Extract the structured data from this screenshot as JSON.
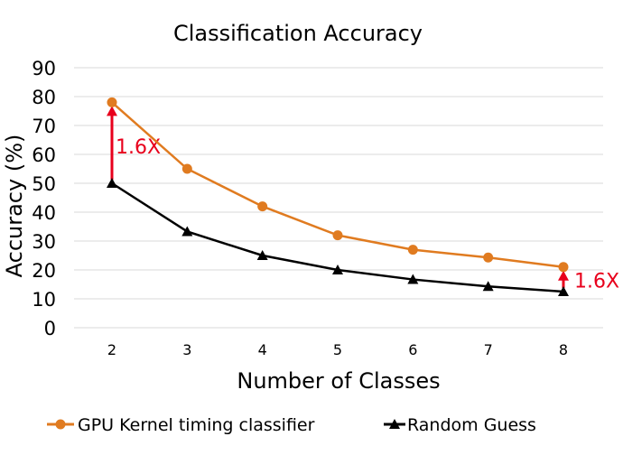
{
  "chart_data": {
    "type": "line",
    "title": "Classification Accuracy",
    "xlabel": "Number of Classes",
    "ylabel": "Accuracy (%)",
    "x": [
      2,
      3,
      4,
      5,
      6,
      7,
      8
    ],
    "ylim": [
      0,
      90
    ],
    "yticks": [
      0,
      10,
      20,
      30,
      40,
      50,
      60,
      70,
      80,
      90
    ],
    "grid": "horizontal",
    "legend_position": "bottom",
    "series": [
      {
        "name": "GPU Kernel timing classifier",
        "values": [
          78,
          55,
          42,
          32,
          27,
          24.3,
          21
        ],
        "color": "#e07b20",
        "marker": "circle"
      },
      {
        "name": "Random Guess",
        "values": [
          50,
          33.3,
          25,
          20,
          16.7,
          14.3,
          12.5
        ],
        "color": "#000000",
        "marker": "triangle"
      }
    ],
    "annotations": [
      {
        "text": "1.6X",
        "x": 2,
        "from": 50,
        "to": 78,
        "color": "#e8001c"
      },
      {
        "text": "1.6X",
        "x": 8,
        "from": 12.5,
        "to": 21,
        "color": "#e8001c"
      }
    ]
  }
}
